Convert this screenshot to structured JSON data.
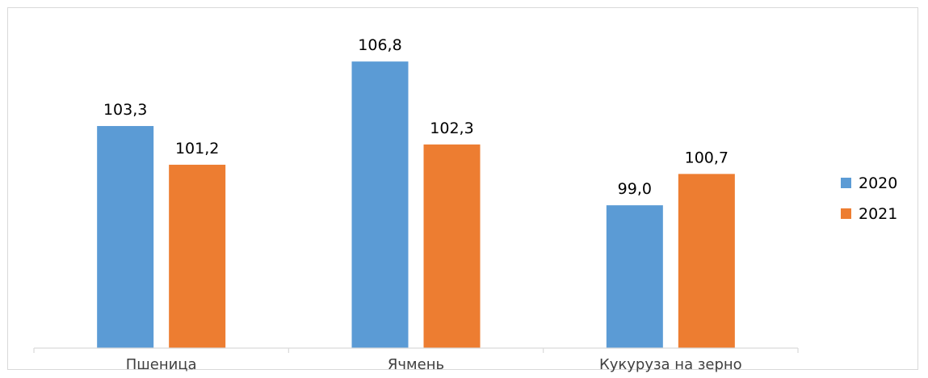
{
  "chart_data": {
    "type": "bar",
    "categories": [
      "Пшеница",
      "Ячмень",
      "Кукуруза на зерно"
    ],
    "series": [
      {
        "name": "2020",
        "values": [
          103.3,
          106.8,
          99.0
        ],
        "labels": [
          "103,3",
          "106,8",
          "99,0"
        ],
        "color": "#5b9bd5"
      },
      {
        "name": "2021",
        "values": [
          101.2,
          102.3,
          100.7
        ],
        "labels": [
          "101,2",
          "102,3",
          "100,7"
        ],
        "color": "#ed7d31"
      }
    ],
    "title": "",
    "xlabel": "",
    "ylabel": "",
    "ylim": [
      91.25,
      108.56
    ],
    "grid": false,
    "legend_position": "right"
  }
}
